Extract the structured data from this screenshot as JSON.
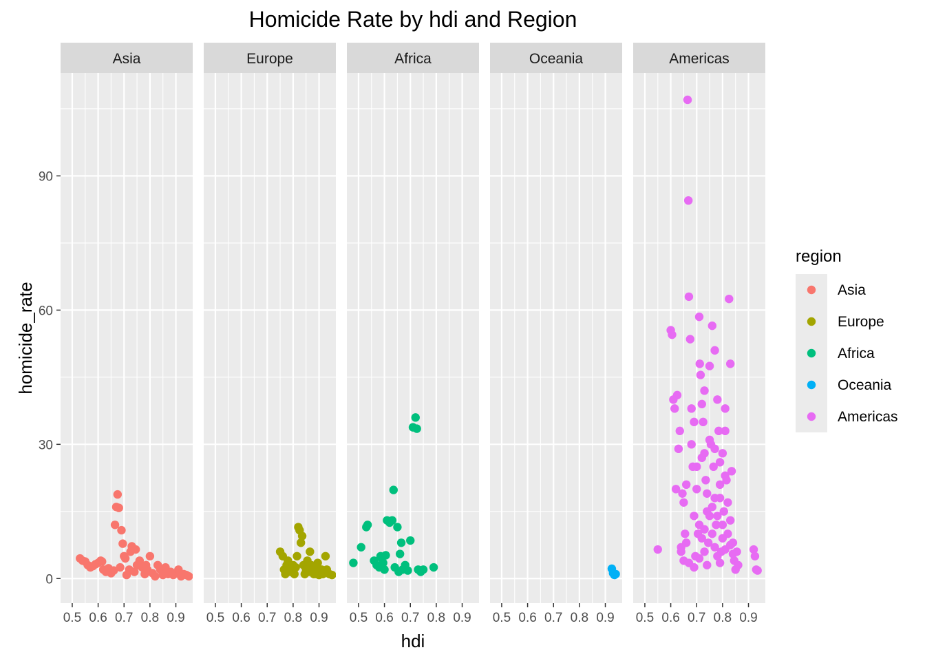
{
  "chart_data": {
    "type": "scatter",
    "title": "Homicide Rate by hdi and Region",
    "xlabel": "hdi",
    "ylabel": "homicide_rate",
    "xlim": [
      0.455,
      0.965
    ],
    "ylim": [
      -5.5,
      113
    ],
    "x_ticks": [
      0.5,
      0.6,
      0.7,
      0.8,
      0.9
    ],
    "x_tick_labels": [
      "0.5",
      "0.6",
      "0.7",
      "0.8",
      "0.9"
    ],
    "y_ticks": [
      0,
      30,
      60,
      90
    ],
    "y_tick_labels": [
      "0",
      "30",
      "60",
      "90"
    ],
    "facet": "region",
    "grid": true,
    "legend": {
      "title": "region",
      "position": "right"
    },
    "series": [
      {
        "name": "Asia",
        "color": "#F8766D",
        "points": [
          [
            0.53,
            4.5
          ],
          [
            0.54,
            4.0
          ],
          [
            0.55,
            3.8
          ],
          [
            0.56,
            3.0
          ],
          [
            0.57,
            2.5
          ],
          [
            0.58,
            2.8
          ],
          [
            0.59,
            3.2
          ],
          [
            0.6,
            3.5
          ],
          [
            0.61,
            4.0
          ],
          [
            0.615,
            3.8
          ],
          [
            0.62,
            2.0
          ],
          [
            0.63,
            1.5
          ],
          [
            0.64,
            2.3
          ],
          [
            0.65,
            1.2
          ],
          [
            0.66,
            1.8
          ],
          [
            0.665,
            12.0
          ],
          [
            0.67,
            16.0
          ],
          [
            0.675,
            18.8
          ],
          [
            0.68,
            15.8
          ],
          [
            0.685,
            2.5
          ],
          [
            0.69,
            10.8
          ],
          [
            0.695,
            7.8
          ],
          [
            0.7,
            5.0
          ],
          [
            0.705,
            4.5
          ],
          [
            0.71,
            0.8
          ],
          [
            0.72,
            2.0
          ],
          [
            0.725,
            6.0
          ],
          [
            0.73,
            7.2
          ],
          [
            0.74,
            1.5
          ],
          [
            0.745,
            6.5
          ],
          [
            0.75,
            3.0
          ],
          [
            0.76,
            4.0
          ],
          [
            0.77,
            2.5
          ],
          [
            0.78,
            1.0
          ],
          [
            0.785,
            3.0
          ],
          [
            0.79,
            2.0
          ],
          [
            0.8,
            5.0
          ],
          [
            0.81,
            1.2
          ],
          [
            0.82,
            0.5
          ],
          [
            0.83,
            3.0
          ],
          [
            0.84,
            2.0
          ],
          [
            0.85,
            0.8
          ],
          [
            0.86,
            2.5
          ],
          [
            0.87,
            1.0
          ],
          [
            0.88,
            1.5
          ],
          [
            0.89,
            0.8
          ],
          [
            0.9,
            1.2
          ],
          [
            0.91,
            2.0
          ],
          [
            0.92,
            0.5
          ],
          [
            0.93,
            1.0
          ],
          [
            0.94,
            0.8
          ],
          [
            0.95,
            0.5
          ]
        ]
      },
      {
        "name": "Europe",
        "color": "#A3A500",
        "points": [
          [
            0.75,
            6.0
          ],
          [
            0.76,
            5.0
          ],
          [
            0.765,
            2.0
          ],
          [
            0.77,
            1.0
          ],
          [
            0.775,
            3.0
          ],
          [
            0.78,
            4.0
          ],
          [
            0.785,
            2.0
          ],
          [
            0.79,
            1.5
          ],
          [
            0.8,
            3.0
          ],
          [
            0.805,
            1.0
          ],
          [
            0.81,
            2.5
          ],
          [
            0.815,
            5.0
          ],
          [
            0.82,
            11.5
          ],
          [
            0.825,
            10.8
          ],
          [
            0.83,
            8.0
          ],
          [
            0.835,
            9.5
          ],
          [
            0.84,
            3.0
          ],
          [
            0.845,
            1.0
          ],
          [
            0.85,
            2.0
          ],
          [
            0.855,
            4.0
          ],
          [
            0.86,
            1.5
          ],
          [
            0.865,
            6.0
          ],
          [
            0.87,
            3.0
          ],
          [
            0.875,
            2.0
          ],
          [
            0.88,
            1.0
          ],
          [
            0.885,
            2.5
          ],
          [
            0.89,
            1.0
          ],
          [
            0.895,
            3.5
          ],
          [
            0.9,
            0.8
          ],
          [
            0.91,
            2.0
          ],
          [
            0.915,
            1.0
          ],
          [
            0.92,
            1.5
          ],
          [
            0.925,
            5.0
          ],
          [
            0.93,
            2.0
          ],
          [
            0.94,
            1.0
          ],
          [
            0.95,
            0.8
          ]
        ]
      },
      {
        "name": "Africa",
        "color": "#00BF7D",
        "points": [
          [
            0.48,
            3.5
          ],
          [
            0.51,
            7.0
          ],
          [
            0.53,
            11.5
          ],
          [
            0.535,
            12.0
          ],
          [
            0.56,
            4.0
          ],
          [
            0.57,
            3.0
          ],
          [
            0.58,
            2.5
          ],
          [
            0.585,
            5.0
          ],
          [
            0.59,
            4.5
          ],
          [
            0.595,
            3.5
          ],
          [
            0.6,
            2.0
          ],
          [
            0.605,
            5.2
          ],
          [
            0.61,
            13.0
          ],
          [
            0.62,
            12.5
          ],
          [
            0.63,
            13.0
          ],
          [
            0.635,
            19.8
          ],
          [
            0.64,
            2.5
          ],
          [
            0.65,
            11.5
          ],
          [
            0.655,
            1.5
          ],
          [
            0.66,
            5.5
          ],
          [
            0.665,
            8.0
          ],
          [
            0.67,
            2.0
          ],
          [
            0.68,
            3.0
          ],
          [
            0.69,
            1.8
          ],
          [
            0.7,
            8.5
          ],
          [
            0.71,
            33.8
          ],
          [
            0.72,
            36.0
          ],
          [
            0.725,
            33.5
          ],
          [
            0.73,
            2.0
          ],
          [
            0.74,
            1.5
          ],
          [
            0.75,
            2.0
          ],
          [
            0.79,
            2.5
          ]
        ]
      },
      {
        "name": "Oceania",
        "color": "#00B0F6",
        "points": [
          [
            0.925,
            2.2
          ],
          [
            0.93,
            1.2
          ],
          [
            0.935,
            0.8
          ],
          [
            0.94,
            1.0
          ]
        ]
      },
      {
        "name": "Americas",
        "color": "#E76BF3",
        "points": [
          [
            0.55,
            6.5
          ],
          [
            0.6,
            55.5
          ],
          [
            0.605,
            54.5
          ],
          [
            0.61,
            40.0
          ],
          [
            0.615,
            38.0
          ],
          [
            0.62,
            20.0
          ],
          [
            0.625,
            41.0
          ],
          [
            0.63,
            29.0
          ],
          [
            0.635,
            33.0
          ],
          [
            0.64,
            7.0
          ],
          [
            0.645,
            19.0
          ],
          [
            0.65,
            17.0
          ],
          [
            0.655,
            10.0
          ],
          [
            0.66,
            8.0
          ],
          [
            0.665,
            107.0
          ],
          [
            0.668,
            84.5
          ],
          [
            0.67,
            63.0
          ],
          [
            0.675,
            53.5
          ],
          [
            0.68,
            38.0
          ],
          [
            0.685,
            25.0
          ],
          [
            0.69,
            14.0
          ],
          [
            0.695,
            5.0
          ],
          [
            0.7,
            20.0
          ],
          [
            0.705,
            10.0
          ],
          [
            0.71,
            58.5
          ],
          [
            0.712,
            48.0
          ],
          [
            0.715,
            45.5
          ],
          [
            0.72,
            39.0
          ],
          [
            0.725,
            35.0
          ],
          [
            0.73,
            28.0
          ],
          [
            0.735,
            22.0
          ],
          [
            0.74,
            15.0
          ],
          [
            0.745,
            8.0
          ],
          [
            0.75,
            47.5
          ],
          [
            0.755,
            30.0
          ],
          [
            0.76,
            56.5
          ],
          [
            0.765,
            25.0
          ],
          [
            0.77,
            51.0
          ],
          [
            0.775,
            12.0
          ],
          [
            0.78,
            40.0
          ],
          [
            0.785,
            33.0
          ],
          [
            0.79,
            18.0
          ],
          [
            0.795,
            6.0
          ],
          [
            0.8,
            28.0
          ],
          [
            0.805,
            15.0
          ],
          [
            0.81,
            38.0
          ],
          [
            0.815,
            22.0
          ],
          [
            0.82,
            10.0
          ],
          [
            0.825,
            62.5
          ],
          [
            0.83,
            48.0
          ],
          [
            0.835,
            24.0
          ],
          [
            0.84,
            8.0
          ],
          [
            0.845,
            4.0
          ],
          [
            0.85,
            2.0
          ],
          [
            0.855,
            6.0
          ],
          [
            0.86,
            3.0
          ],
          [
            0.92,
            6.5
          ],
          [
            0.925,
            5.0
          ],
          [
            0.93,
            2.0
          ],
          [
            0.935,
            1.8
          ],
          [
            0.71,
            12.0
          ],
          [
            0.72,
            9.0
          ],
          [
            0.73,
            6.0
          ],
          [
            0.74,
            3.0
          ],
          [
            0.76,
            10.0
          ],
          [
            0.77,
            7.0
          ],
          [
            0.78,
            5.0
          ],
          [
            0.79,
            3.5
          ],
          [
            0.8,
            9.0
          ],
          [
            0.81,
            6.5
          ],
          [
            0.7,
            25.0
          ],
          [
            0.72,
            27.0
          ],
          [
            0.74,
            19.0
          ],
          [
            0.76,
            16.0
          ],
          [
            0.78,
            14.0
          ],
          [
            0.8,
            12.0
          ],
          [
            0.82,
            17.0
          ],
          [
            0.66,
            21.0
          ],
          [
            0.68,
            30.0
          ],
          [
            0.69,
            35.0
          ],
          [
            0.73,
            42.0
          ],
          [
            0.75,
            31.0
          ],
          [
            0.77,
            29.0
          ],
          [
            0.79,
            26.0
          ],
          [
            0.81,
            23.0
          ],
          [
            0.83,
            13.0
          ],
          [
            0.64,
            6.0
          ],
          [
            0.65,
            4.0
          ],
          [
            0.67,
            3.5
          ],
          [
            0.69,
            2.5
          ],
          [
            0.71,
            4.5
          ],
          [
            0.73,
            11.0
          ],
          [
            0.75,
            14.0
          ],
          [
            0.77,
            18.0
          ],
          [
            0.79,
            21.0
          ],
          [
            0.81,
            33.0
          ],
          [
            0.83,
            7.5
          ],
          [
            0.84,
            5.5
          ]
        ]
      }
    ]
  }
}
